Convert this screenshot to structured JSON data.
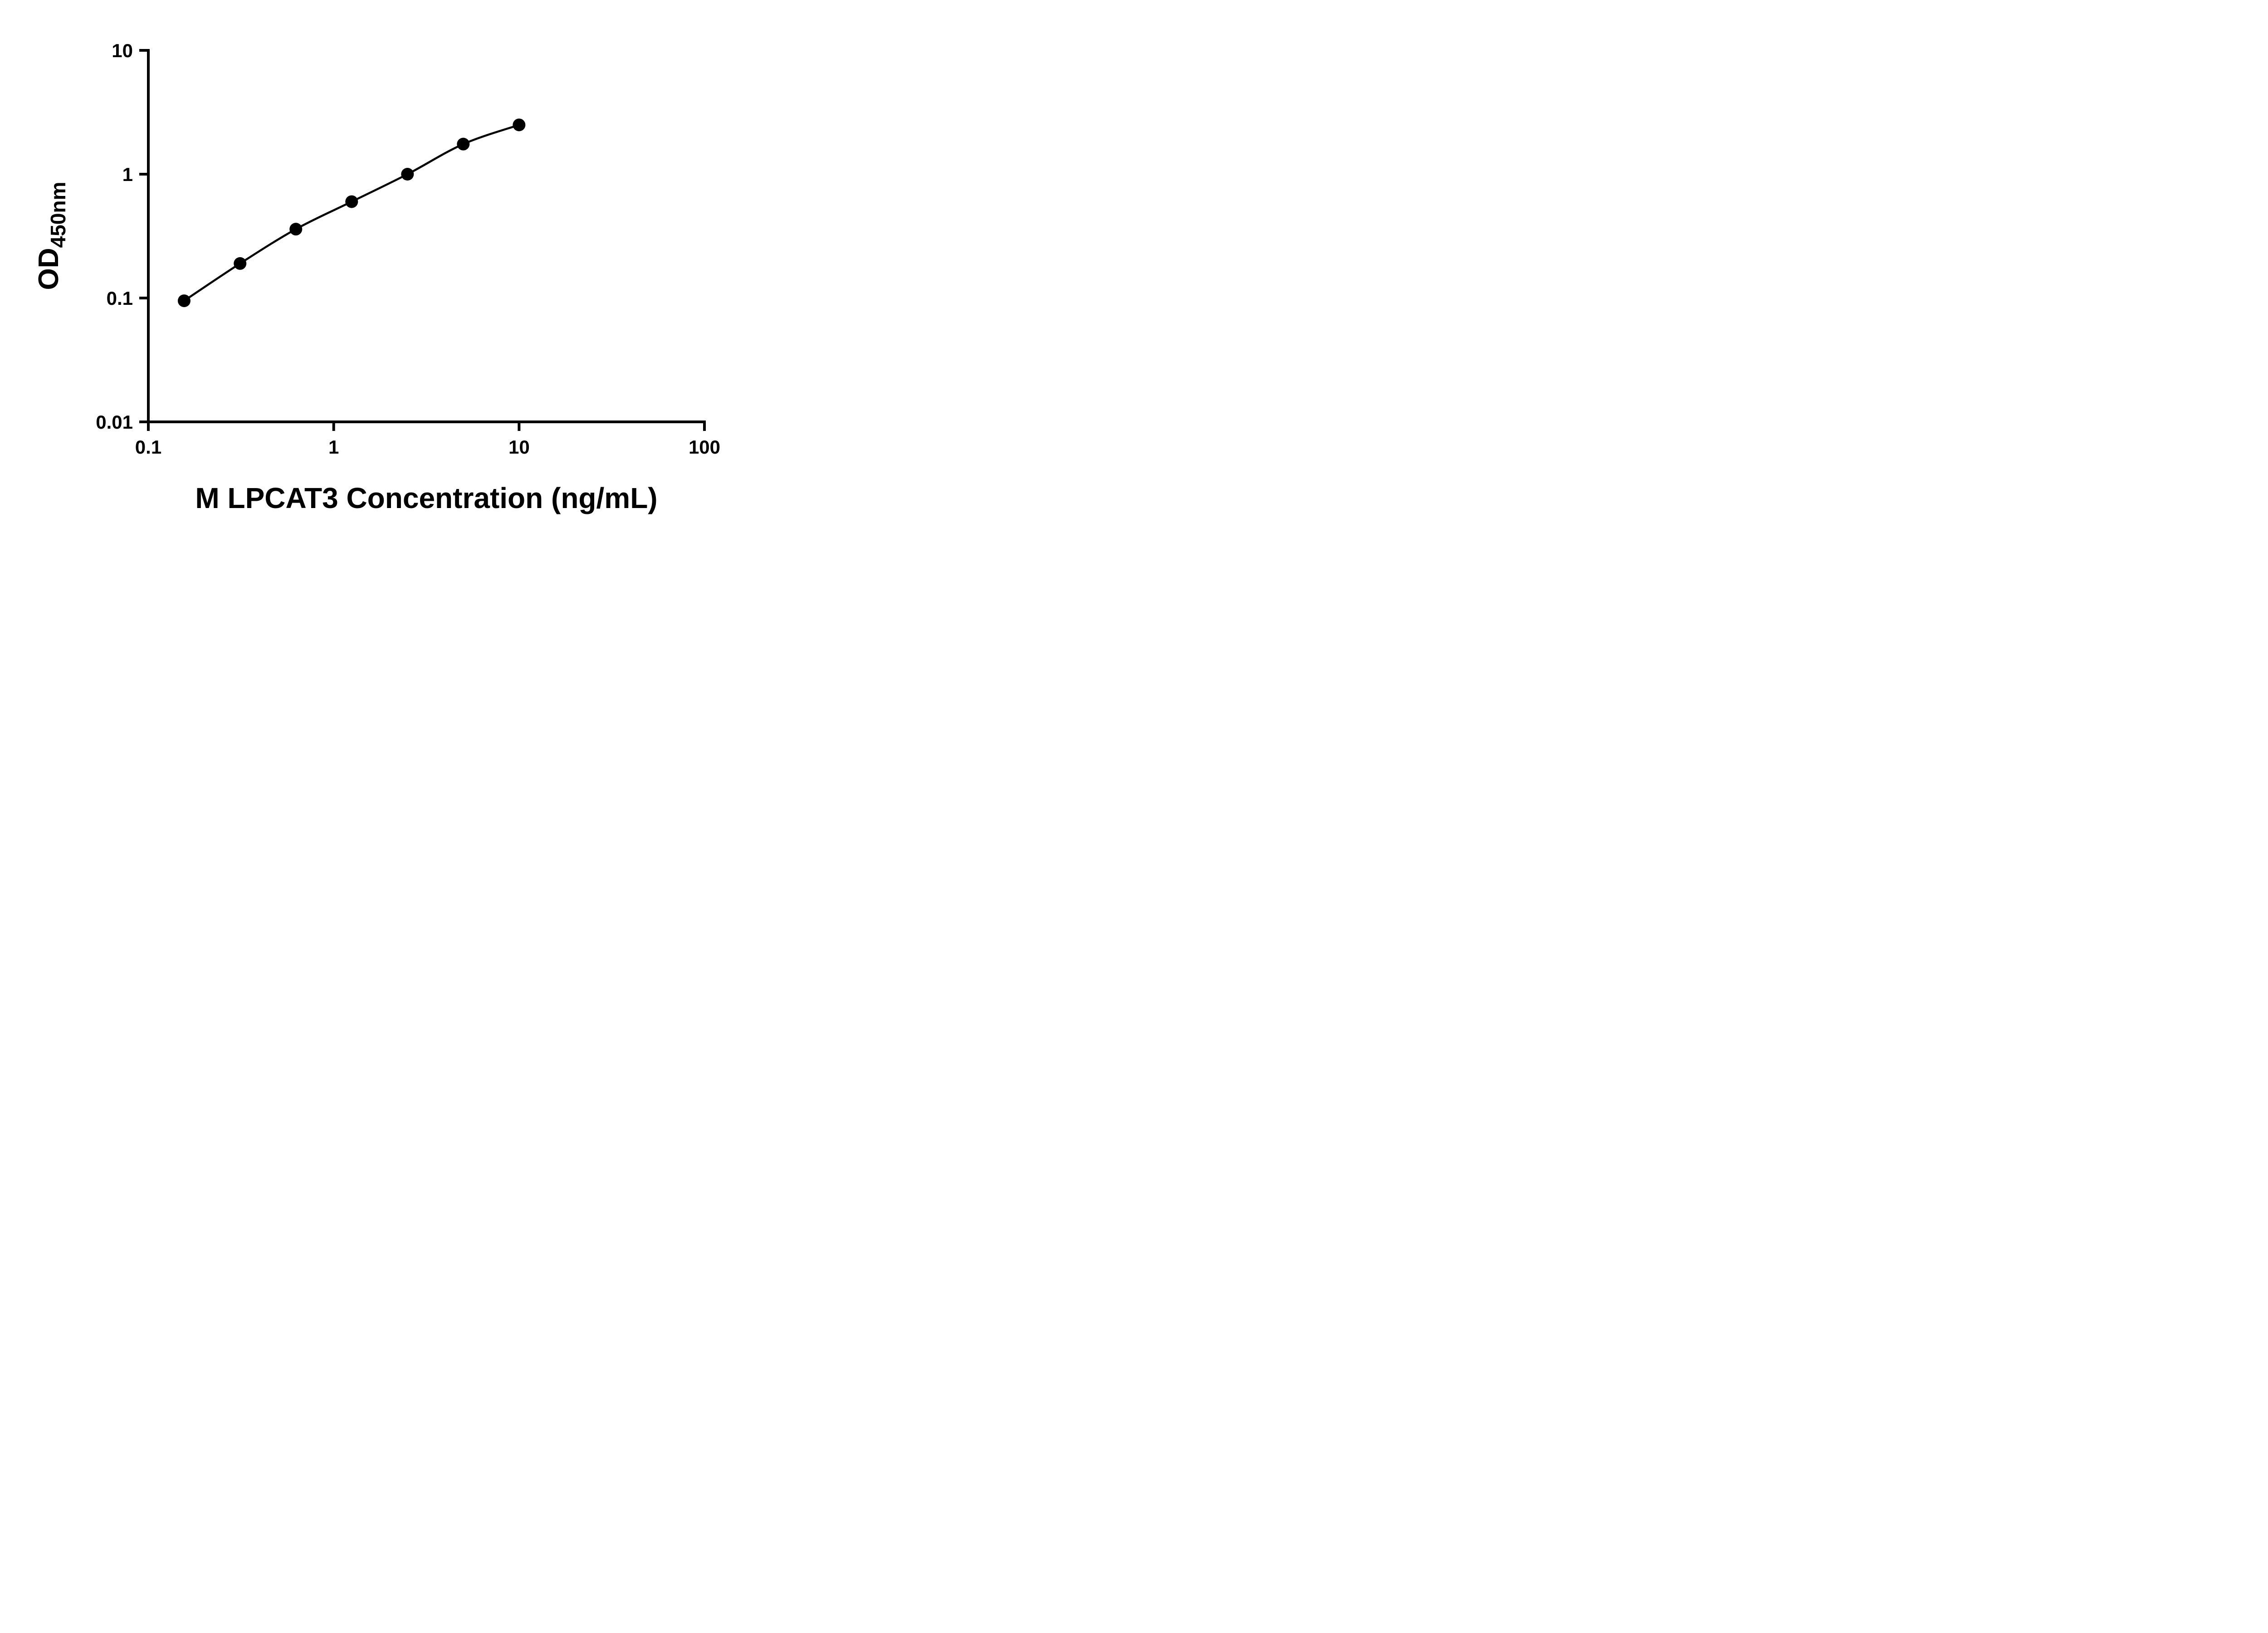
{
  "figure": {
    "background": "#ffffff"
  },
  "style": {
    "axis_color": "#000000",
    "line_color": "#000000",
    "marker_color": "#000000",
    "text_color": "#000000"
  },
  "chart_data": {
    "type": "scatter",
    "subtype": "log-log standard curve with smooth connecting line",
    "title": "",
    "xlabel": "M LPCAT3 Concentration (ng/mL)",
    "ylabel_main": "OD",
    "ylabel_sub": "450nm",
    "x_scale": "log10",
    "y_scale": "log10",
    "xlim": [
      0.1,
      100
    ],
    "ylim": [
      0.01,
      10
    ],
    "grid": false,
    "legend": "none",
    "x_ticks": [
      {
        "value": 0.1,
        "label": "0.1"
      },
      {
        "value": 1,
        "label": "1"
      },
      {
        "value": 10,
        "label": "10"
      },
      {
        "value": 100,
        "label": "100"
      }
    ],
    "y_ticks": [
      {
        "value": 0.01,
        "label": "0.01"
      },
      {
        "value": 0.1,
        "label": "0.1"
      },
      {
        "value": 1,
        "label": "1"
      },
      {
        "value": 10,
        "label": "10"
      }
    ],
    "series": [
      {
        "marker": "filled-circle",
        "marker_color": "#000000",
        "line_color": "#000000",
        "points": [
          {
            "x": 0.156,
            "y": 0.095
          },
          {
            "x": 0.3125,
            "y": 0.19
          },
          {
            "x": 0.625,
            "y": 0.36
          },
          {
            "x": 1.25,
            "y": 0.6
          },
          {
            "x": 2.5,
            "y": 1.0
          },
          {
            "x": 5,
            "y": 1.75
          },
          {
            "x": 10,
            "y": 2.5
          }
        ]
      }
    ]
  }
}
